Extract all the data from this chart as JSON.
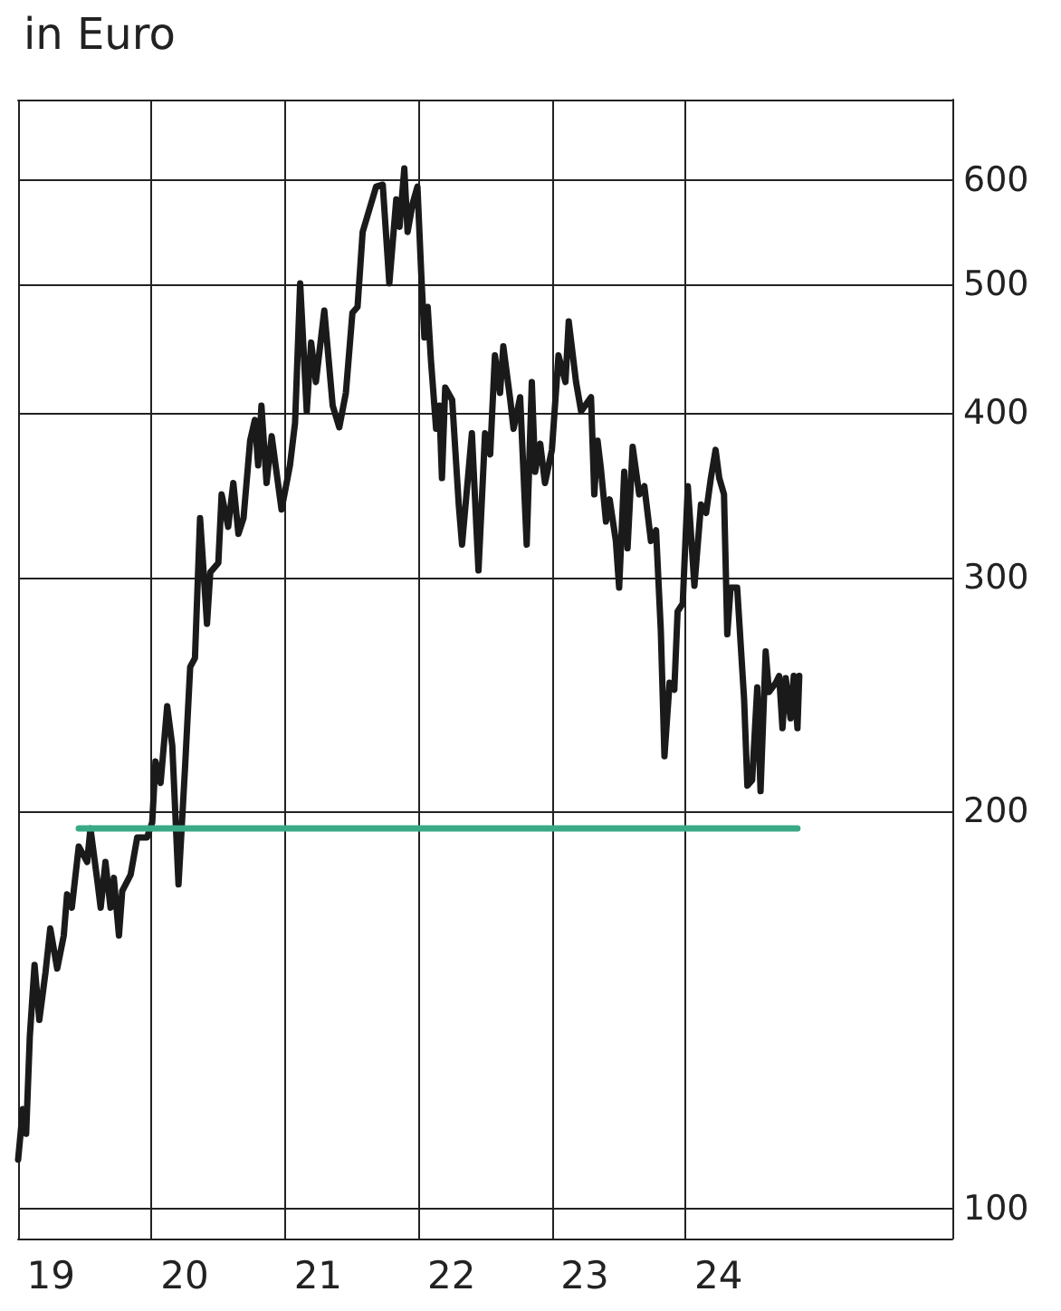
{
  "chart_data": {
    "type": "line",
    "title": "in Euro",
    "log": "y",
    "grid": true,
    "xlim": [
      "2019-01-01",
      "2026-01-01"
    ],
    "xticks": [
      {
        "value": "2019-01-01",
        "label": null
      },
      {
        "value": "2019-04-01",
        "label": "19"
      },
      {
        "value": "2020-01-01",
        "label": null
      },
      {
        "value": "2020-04-01",
        "label": "20"
      },
      {
        "value": "2021-01-01",
        "label": null
      },
      {
        "value": "2021-04-01",
        "label": "21"
      },
      {
        "value": "2022-01-01",
        "label": null
      },
      {
        "value": "2022-04-01",
        "label": "22"
      },
      {
        "value": "2023-01-01",
        "label": null
      },
      {
        "value": "2023-04-01",
        "label": "23"
      },
      {
        "value": "2024-01-01",
        "label": null
      },
      {
        "value": "2024-04-01",
        "label": "24"
      }
    ],
    "ylim": [
      95,
      690
    ],
    "yticks": [
      100,
      200,
      300,
      400,
      500,
      600
    ],
    "series": [
      {
        "color": "#1a1a1a",
        "x": [
          "2019-01-01",
          "2019-01-14",
          "2019-01-23",
          "2019-02-02",
          "2019-02-15",
          "2019-02-28",
          "2019-03-17",
          "2019-03-30",
          "2019-04-18",
          "2019-05-06",
          "2019-05-15",
          "2019-05-28",
          "2019-06-16",
          "2019-07-09",
          "2019-07-18",
          "2019-08-06",
          "2019-08-15",
          "2019-08-28",
          "2019-09-11",
          "2019-09-20",
          "2019-10-04",
          "2019-10-13",
          "2019-11-05",
          "2019-11-23",
          "2019-12-20",
          "2020-01-03",
          "2020-01-12",
          "2020-01-26",
          "2020-02-13",
          "2020-02-27",
          "2020-03-15",
          "2020-04-02",
          "2020-04-16",
          "2020-04-29",
          "2020-05-13",
          "2020-06-01",
          "2020-06-10",
          "2020-07-02",
          "2020-07-11",
          "2020-07-29",
          "2020-08-12",
          "2020-08-26",
          "2020-09-09",
          "2020-09-27",
          "2020-10-10",
          "2020-10-19",
          "2020-10-28",
          "2020-11-11",
          "2020-11-25",
          "2020-12-22",
          "2021-01-14",
          "2021-01-28",
          "2021-02-11",
          "2021-03-01",
          "2021-03-13",
          "2021-03-26",
          "2021-04-18",
          "2021-05-11",
          "2021-05-29",
          "2021-06-16",
          "2021-07-04",
          "2021-07-18",
          "2021-08-01",
          "2021-09-07",
          "2021-09-25",
          "2021-10-13",
          "2021-11-01",
          "2021-11-10",
          "2021-11-23",
          "2021-12-02",
          "2021-12-16",
          "2021-12-29",
          "2022-01-08",
          "2022-01-17",
          "2022-01-26",
          "2022-02-04",
          "2022-02-18",
          "2022-02-27",
          "2022-03-06",
          "2022-03-15",
          "2022-04-03",
          "2022-04-21",
          "2022-04-30",
          "2022-05-27",
          "2022-06-14",
          "2022-07-02",
          "2022-07-16",
          "2022-07-29",
          "2022-08-12",
          "2022-08-21",
          "2022-09-09",
          "2022-09-18",
          "2022-10-06",
          "2022-10-24",
          "2022-11-07",
          "2022-11-16",
          "2022-11-30",
          "2022-12-13",
          "2023-01-01",
          "2023-01-19",
          "2023-02-07",
          "2023-02-16",
          "2023-03-08",
          "2023-03-22",
          "2023-04-18",
          "2023-04-27",
          "2023-05-06",
          "2023-05-15",
          "2023-05-29",
          "2023-06-08",
          "2023-06-25",
          "2023-07-04",
          "2023-07-18",
          "2023-07-27",
          "2023-08-10",
          "2023-08-28",
          "2023-09-11",
          "2023-09-29",
          "2023-10-13",
          "2023-10-26",
          "2023-11-05",
          "2023-11-19",
          "2023-12-02",
          "2023-12-11",
          "2023-12-25",
          "2024-01-08",
          "2024-01-26",
          "2024-02-13",
          "2024-02-27",
          "2024-03-11",
          "2024-03-24",
          "2024-04-03",
          "2024-04-16",
          "2024-04-25",
          "2024-05-04",
          "2024-05-22",
          "2024-06-10",
          "2024-06-19",
          "2024-07-02",
          "2024-07-16",
          "2024-07-25",
          "2024-08-08",
          "2024-08-17",
          "2024-09-05",
          "2024-09-14",
          "2024-09-23",
          "2024-10-02",
          "2024-10-15",
          "2024-10-24",
          "2024-11-03",
          "2024-11-08"
        ],
        "values": [
          109,
          119,
          114,
          135,
          153,
          139,
          151,
          163,
          152,
          161,
          173,
          169,
          188,
          183,
          194,
          177,
          169,
          183,
          169,
          178,
          161,
          174,
          179,
          191,
          191,
          196,
          218,
          210,
          240,
          224,
          176,
          216,
          257,
          261,
          333,
          277,
          303,
          308,
          347,
          328,
          354,
          324,
          333,
          381,
          395,
          365,
          405,
          354,
          384,
          338,
          365,
          393,
          501,
          401,
          452,
          422,
          478,
          405,
          390,
          414,
          476,
          481,
          548,
          593,
          595,
          501,
          580,
          553,
          612,
          548,
          576,
          593,
          512,
          456,
          481,
          438,
          389,
          405,
          357,
          418,
          409,
          341,
          318,
          386,
          304,
          386,
          372,
          442,
          414,
          449,
          409,
          389,
          411,
          318,
          422,
          361,
          379,
          354,
          375,
          442,
          422,
          469,
          422,
          401,
          411,
          347,
          381,
          363,
          331,
          344,
          320,
          295,
          361,
          316,
          377,
          347,
          352,
          320,
          326,
          274,
          220,
          250,
          247,
          283,
          287,
          352,
          296,
          341,
          336,
          357,
          375,
          357,
          347,
          272,
          295,
          295,
          243,
          209,
          211,
          248,
          207,
          264,
          246,
          250,
          253,
          231,
          252,
          235,
          253,
          231,
          253
        ]
      },
      {
        "color": "#3aaa86",
        "x": [
          "2019-06-16",
          "2024-11-03"
        ],
        "values": [
          194,
          194
        ]
      }
    ]
  }
}
